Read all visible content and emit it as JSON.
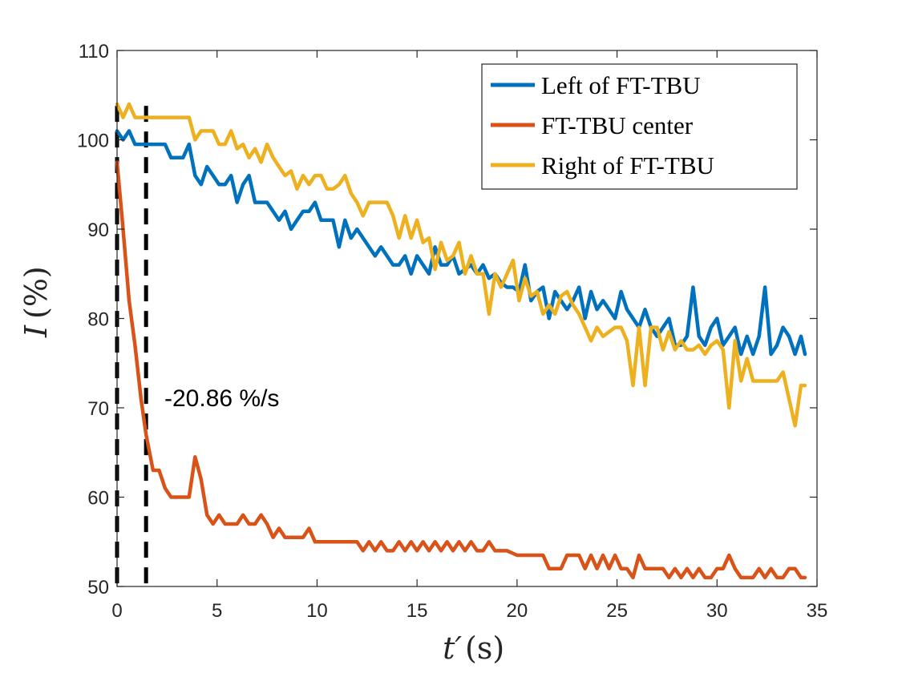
{
  "chart_data": {
    "type": "line",
    "xlabel_main": "t′",
    "xlabel_unit": "(s)",
    "ylabel_main": "I",
    "ylabel_unit": "(%)",
    "xlim": [
      0,
      35
    ],
    "ylim": [
      50,
      110
    ],
    "xticks": [
      0,
      5,
      10,
      15,
      20,
      25,
      30,
      35
    ],
    "yticks": [
      50,
      60,
      70,
      80,
      90,
      100,
      110
    ],
    "legend_position": "top-right",
    "annotation": "-20.86 %/s",
    "vlines": [
      0,
      1.45
    ],
    "series": [
      {
        "name": "Left of FT-TBU",
        "color": "#0072BD",
        "x": [
          0,
          0.3,
          0.6,
          0.9,
          1.2,
          1.5,
          1.8,
          2.1,
          2.4,
          2.7,
          3.0,
          3.3,
          3.6,
          3.9,
          4.2,
          4.5,
          4.8,
          5.1,
          5.4,
          5.7,
          6.0,
          6.3,
          6.6,
          6.9,
          7.2,
          7.5,
          7.8,
          8.1,
          8.4,
          8.7,
          9.0,
          9.3,
          9.6,
          9.9,
          10.2,
          10.5,
          10.8,
          11.1,
          11.4,
          11.7,
          12.0,
          12.3,
          12.6,
          12.9,
          13.2,
          13.5,
          13.8,
          14.1,
          14.4,
          14.7,
          15.0,
          15.3,
          15.6,
          15.9,
          16.2,
          16.5,
          16.8,
          17.1,
          17.4,
          17.7,
          18.0,
          18.3,
          18.6,
          18.9,
          19.2,
          19.5,
          19.8,
          20.1,
          20.4,
          20.7,
          21.0,
          21.3,
          21.6,
          21.9,
          22.2,
          22.5,
          22.8,
          23.1,
          23.4,
          23.7,
          24.0,
          24.3,
          24.6,
          24.9,
          25.2,
          25.5,
          25.8,
          26.1,
          26.4,
          26.7,
          27.0,
          27.3,
          27.6,
          27.9,
          28.2,
          28.5,
          28.8,
          29.1,
          29.4,
          29.7,
          30.0,
          30.3,
          30.6,
          30.9,
          31.2,
          31.5,
          31.8,
          32.1,
          32.4,
          32.7,
          33.0,
          33.3,
          33.6,
          33.9,
          34.2,
          34.4
        ],
        "values": [
          101,
          100,
          101,
          99.5,
          99.5,
          99.5,
          99.5,
          99.5,
          99.5,
          98,
          98,
          98,
          99.5,
          96,
          95,
          97,
          96,
          95,
          95,
          96,
          93,
          95,
          96,
          93,
          93,
          93,
          92,
          91,
          92,
          90,
          91,
          92,
          92,
          93,
          91,
          91,
          91,
          88,
          91,
          89,
          90,
          89,
          88,
          87,
          88,
          87,
          86,
          86,
          87,
          85,
          87,
          86,
          85,
          88,
          86,
          86,
          87,
          85,
          85.5,
          86,
          85,
          86,
          84.5,
          85,
          84,
          83.5,
          83.5,
          83,
          86,
          82,
          83,
          83.5,
          80,
          83,
          82,
          81,
          82,
          83.5,
          80,
          83,
          81,
          82,
          81,
          80,
          83,
          81,
          80,
          79,
          81,
          79,
          78,
          79,
          80,
          77,
          77,
          78,
          83.5,
          78,
          77,
          79,
          80,
          77,
          78,
          79,
          76,
          78,
          76,
          78,
          83.5,
          76,
          77,
          79,
          78,
          76,
          78,
          76
        ]
      },
      {
        "name": "FT-TBU center",
        "color": "#D95319",
        "x": [
          0,
          0.3,
          0.6,
          0.9,
          1.2,
          1.45,
          1.8,
          2.1,
          2.4,
          2.7,
          3.0,
          3.3,
          3.6,
          3.9,
          4.2,
          4.5,
          4.8,
          5.1,
          5.4,
          5.7,
          6.0,
          6.3,
          6.6,
          6.9,
          7.2,
          7.5,
          7.8,
          8.1,
          8.4,
          8.7,
          9.0,
          9.3,
          9.6,
          9.9,
          10.5,
          11.0,
          11.5,
          12.0,
          12.3,
          12.6,
          12.9,
          13.2,
          13.5,
          13.8,
          14.1,
          14.4,
          14.7,
          15.0,
          15.3,
          15.6,
          15.9,
          16.2,
          16.5,
          16.8,
          17.1,
          17.4,
          17.7,
          18.0,
          18.3,
          18.6,
          18.9,
          19.5,
          20.0,
          20.5,
          21.0,
          21.3,
          21.6,
          21.9,
          22.2,
          22.5,
          22.8,
          23.1,
          23.4,
          23.7,
          24.0,
          24.3,
          24.6,
          24.9,
          25.2,
          25.5,
          25.8,
          26.1,
          26.4,
          26.7,
          27.0,
          27.3,
          27.6,
          27.9,
          28.2,
          28.5,
          28.8,
          29.1,
          29.4,
          29.7,
          30.0,
          30.3,
          30.6,
          30.9,
          31.2,
          31.5,
          31.8,
          32.1,
          32.4,
          32.7,
          33.0,
          33.3,
          33.6,
          33.9,
          34.2,
          34.4
        ],
        "values": [
          97.5,
          90,
          82,
          77,
          71,
          67,
          63,
          63,
          61,
          60,
          60,
          60,
          60,
          64.5,
          62,
          58,
          57,
          58,
          57,
          57,
          57,
          58,
          57,
          57,
          58,
          57,
          55.5,
          56.5,
          55.5,
          55.5,
          55.5,
          55.5,
          56.5,
          55,
          55,
          55,
          55,
          55,
          54,
          55,
          54,
          55,
          54,
          54,
          55,
          54,
          55,
          54,
          55,
          54,
          55,
          54,
          55,
          54,
          55,
          54,
          55,
          54,
          54,
          55,
          54,
          54,
          53.5,
          53.5,
          53.5,
          53.5,
          52,
          52,
          52,
          53.5,
          53.5,
          53.5,
          52,
          53.5,
          52,
          53.5,
          52,
          53.5,
          52,
          52,
          51,
          53.5,
          52,
          52,
          52,
          52,
          51,
          52,
          51,
          52,
          51,
          52,
          51,
          51,
          52,
          52,
          53.5,
          52,
          51,
          51,
          51,
          52,
          51,
          52,
          51,
          51,
          52,
          52,
          51,
          51
        ]
      },
      {
        "name": "Right of FT-TBU",
        "color": "#EDB120",
        "x": [
          0,
          0.3,
          0.6,
          0.9,
          1.2,
          1.5,
          1.8,
          2.1,
          2.4,
          2.7,
          3.0,
          3.3,
          3.6,
          3.9,
          4.2,
          4.5,
          4.8,
          5.1,
          5.4,
          5.7,
          6.0,
          6.3,
          6.6,
          6.9,
          7.2,
          7.5,
          7.8,
          8.1,
          8.4,
          8.7,
          9.0,
          9.3,
          9.6,
          9.9,
          10.2,
          10.5,
          10.8,
          11.1,
          11.4,
          11.7,
          12.0,
          12.3,
          12.6,
          12.9,
          13.2,
          13.5,
          13.8,
          14.1,
          14.4,
          14.7,
          15.0,
          15.3,
          15.6,
          15.9,
          16.2,
          16.5,
          16.8,
          17.1,
          17.4,
          17.7,
          18.0,
          18.3,
          18.6,
          18.9,
          19.2,
          19.5,
          19.8,
          20.1,
          20.4,
          20.7,
          21.0,
          21.3,
          21.6,
          21.9,
          22.2,
          22.5,
          22.8,
          23.1,
          23.4,
          23.7,
          24.0,
          24.3,
          24.6,
          24.9,
          25.2,
          25.5,
          25.8,
          26.1,
          26.4,
          26.7,
          27.0,
          27.3,
          27.6,
          27.9,
          28.2,
          28.5,
          28.8,
          29.1,
          29.4,
          29.7,
          30.0,
          30.3,
          30.6,
          30.9,
          31.2,
          31.5,
          31.8,
          32.1,
          32.4,
          32.7,
          33.0,
          33.3,
          33.6,
          33.9,
          34.2,
          34.4
        ],
        "values": [
          104,
          102.5,
          104,
          102.5,
          102.5,
          102.5,
          102.5,
          102.5,
          102.5,
          102.5,
          102.5,
          102.5,
          102.5,
          100,
          101,
          101,
          101,
          99.5,
          99.5,
          101,
          99,
          99.5,
          98,
          99,
          97.5,
          99.5,
          98,
          97,
          96,
          96.5,
          94.5,
          96,
          95,
          96,
          96,
          94.5,
          94.5,
          95,
          96,
          94,
          93,
          91.5,
          93,
          93,
          93,
          93,
          91.5,
          89,
          91.5,
          89,
          91,
          88.5,
          89,
          85.5,
          88.5,
          86.5,
          87,
          88.5,
          85,
          87,
          85,
          85,
          80.5,
          85,
          83.5,
          85,
          86.5,
          82,
          84.5,
          82.5,
          83,
          80.5,
          81.5,
          80.5,
          82.5,
          83,
          81.5,
          80.5,
          79,
          77.5,
          79,
          78,
          78.5,
          79,
          79,
          77.5,
          72.5,
          79,
          72.5,
          79,
          79,
          76.5,
          78.5,
          76.5,
          77.5,
          76.5,
          76.5,
          77,
          76,
          77,
          77.5,
          76.5,
          70,
          77.5,
          73,
          75.5,
          73,
          73,
          73,
          73,
          73,
          74,
          71,
          68,
          72.5,
          72.5
        ]
      }
    ]
  }
}
